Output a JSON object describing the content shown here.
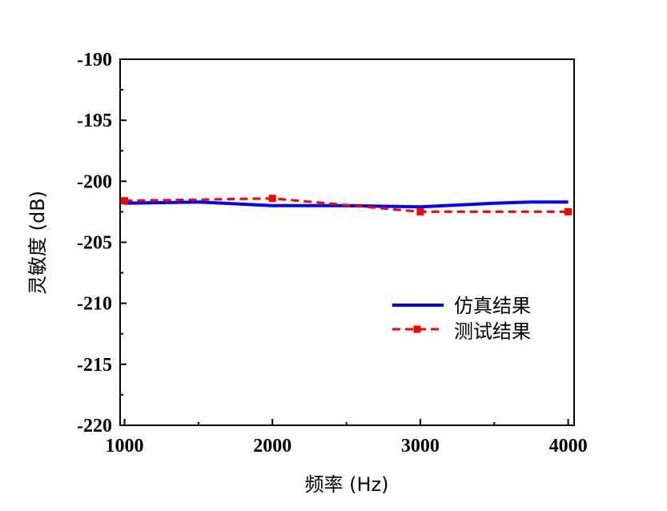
{
  "chart_data": {
    "type": "line",
    "xlabel": "频率 (Hz)",
    "ylabel": "灵敏度 (dB)",
    "xlim": [
      970,
      4040
    ],
    "ylim": [
      -220,
      -190
    ],
    "xticks": [
      1000,
      2000,
      3000,
      4000
    ],
    "xtick_labels": [
      "1000",
      "2000",
      "3000",
      "4000"
    ],
    "yticks": [
      -190,
      -195,
      -200,
      -205,
      -210,
      -215,
      -220
    ],
    "ytick_labels": [
      "-190",
      "-195",
      "-200",
      "-205",
      "-210",
      "-215",
      "-220"
    ],
    "legend_position": "center-right",
    "series": [
      {
        "name": "仿真结果",
        "color": "#0000ff",
        "style": "solid",
        "marker": "none",
        "x": [
          1000,
          1500,
          2000,
          2500,
          3000,
          3500,
          3750,
          4000
        ],
        "y": [
          -201.8,
          -201.7,
          -202.0,
          -202.0,
          -202.1,
          -201.8,
          -201.7,
          -201.7
        ]
      },
      {
        "name": "测试结果",
        "color": "#ff0000",
        "style": "dashed",
        "marker": "square",
        "x": [
          1000,
          2000,
          3000,
          4000
        ],
        "y": [
          -201.6,
          -201.4,
          -202.5,
          -202.5
        ]
      }
    ]
  }
}
